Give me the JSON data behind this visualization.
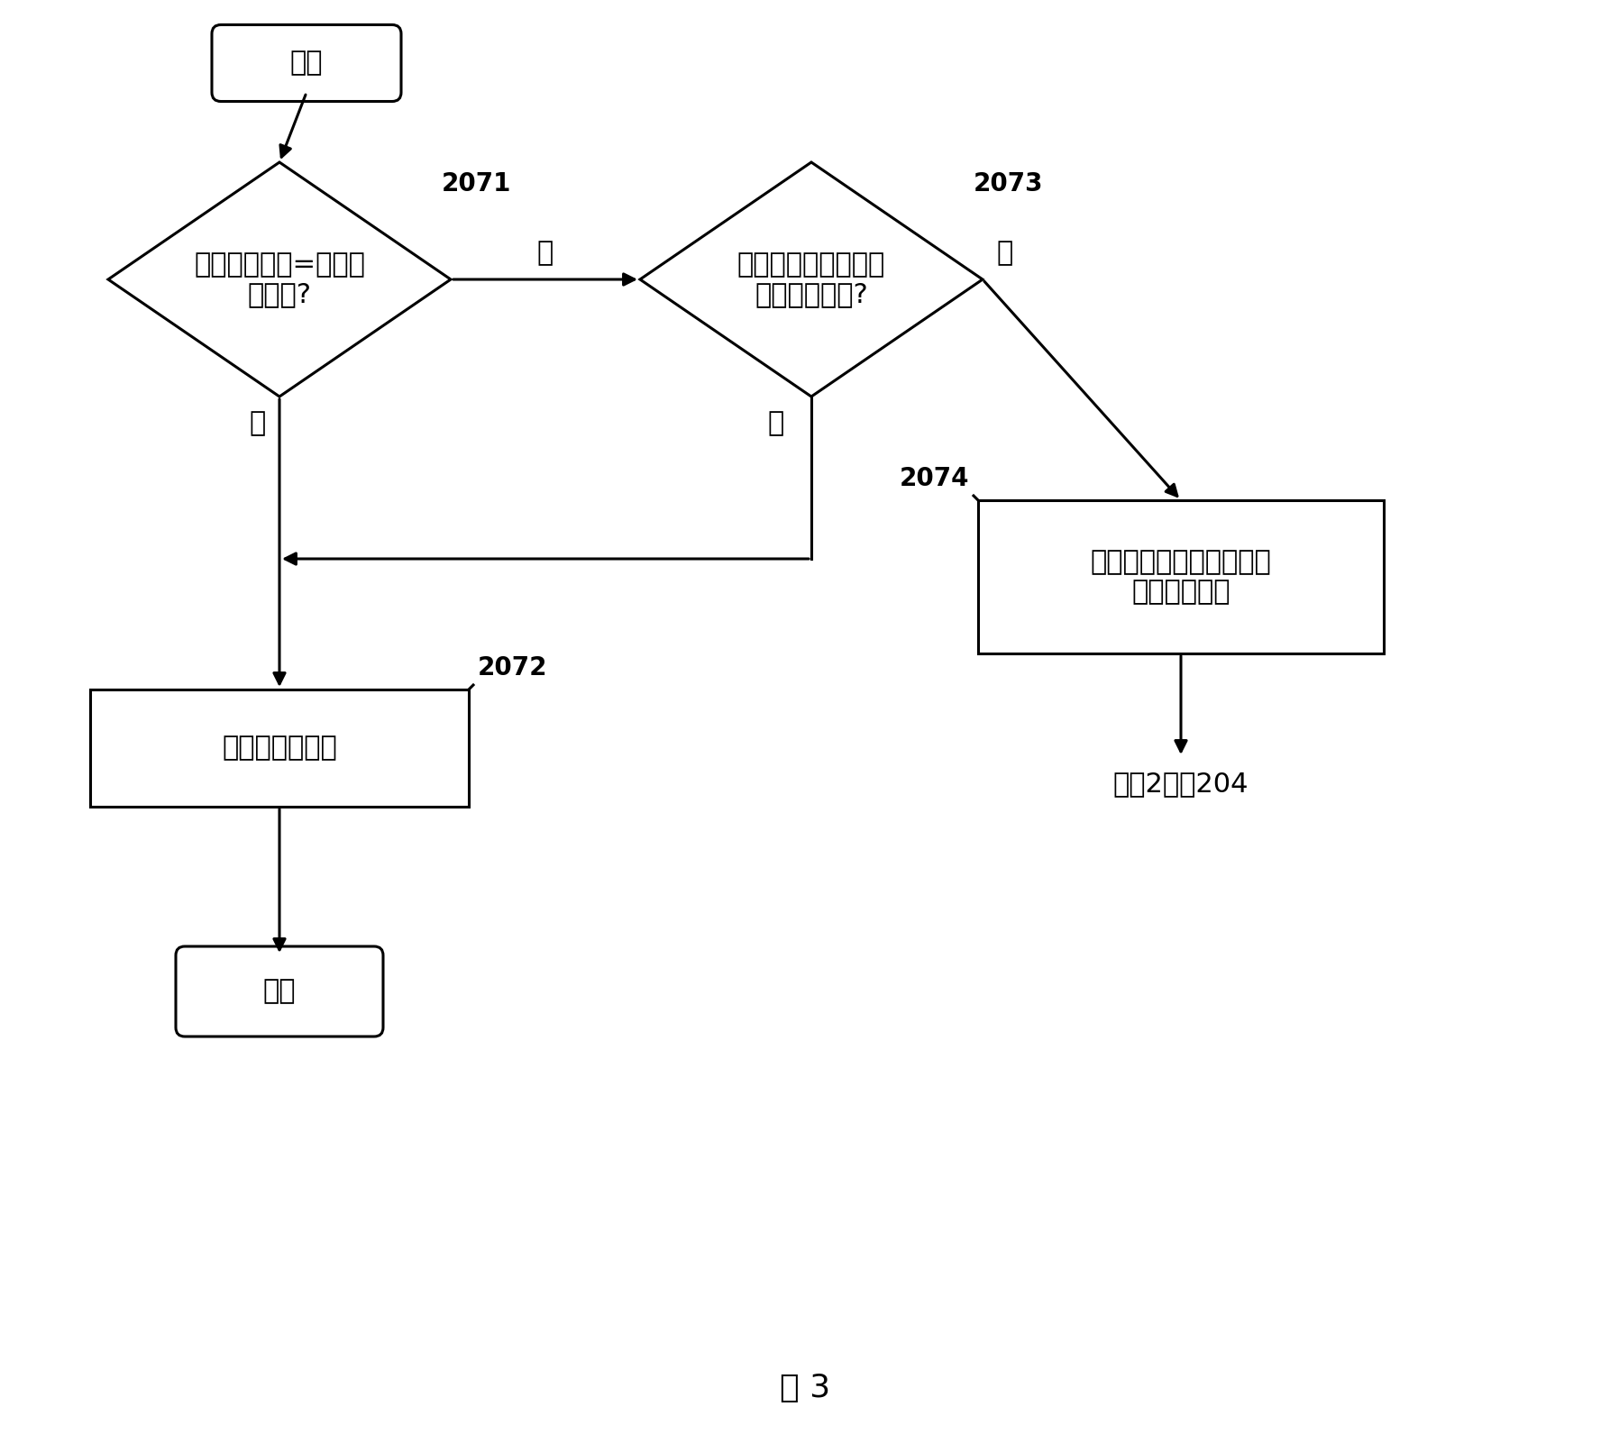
{
  "title": "图 3",
  "background_color": "#ffffff",
  "start_text": "开始",
  "end_text": "结束",
  "diamond1_text": "第一参考分量=第二参\n考分量?",
  "diamond1_label": "2071",
  "diamond2_text": "迭代次数等于或大于\n预定迭代次数?",
  "diamond2_label": "2073",
  "box1_text": "将第二参考分量作为新的\n第一参考分量",
  "box1_label": "2074",
  "box2_text": "输出新检测分量",
  "box2_label": "2072",
  "goto_text": "至图2步骤204",
  "no_text": "否",
  "yes_text": "是",
  "font_size_main": 22,
  "font_size_label": 20,
  "font_size_title": 26,
  "line_color": "#000000",
  "line_width": 2.2
}
